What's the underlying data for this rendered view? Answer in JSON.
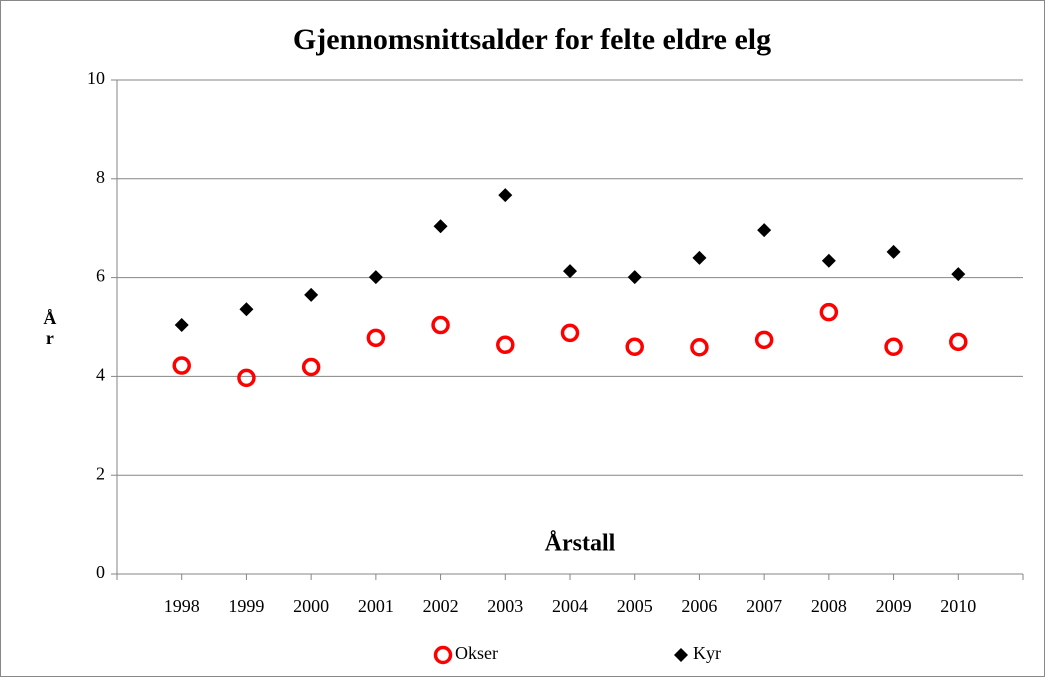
{
  "chart_data": {
    "type": "scatter",
    "title": "Gjennomsnittsalder for felte eldre elg",
    "x_label": "Årstall",
    "y_label": "År",
    "categories": [
      "1998",
      "1999",
      "2000",
      "2001",
      "2002",
      "2003",
      "2004",
      "2005",
      "2006",
      "2007",
      "2008",
      "2009",
      "2010"
    ],
    "series": [
      {
        "name": "Okser",
        "color": "#ff0000",
        "marker": "circle",
        "values": [
          4.22,
          3.97,
          4.19,
          4.78,
          5.04,
          4.64,
          4.88,
          4.6,
          4.59,
          4.74,
          5.3,
          4.6,
          4.7
        ]
      },
      {
        "name": "Kyr",
        "color": "#000000",
        "marker": "diamond",
        "values": [
          5.04,
          5.36,
          5.65,
          6.01,
          7.04,
          7.67,
          6.13,
          6.01,
          6.4,
          6.96,
          6.34,
          6.52,
          6.07
        ]
      }
    ],
    "ylim": [
      0,
      10
    ],
    "yticks": [
      0,
      2,
      4,
      6,
      8,
      10
    ],
    "grid": true,
    "legend": "bottom"
  }
}
